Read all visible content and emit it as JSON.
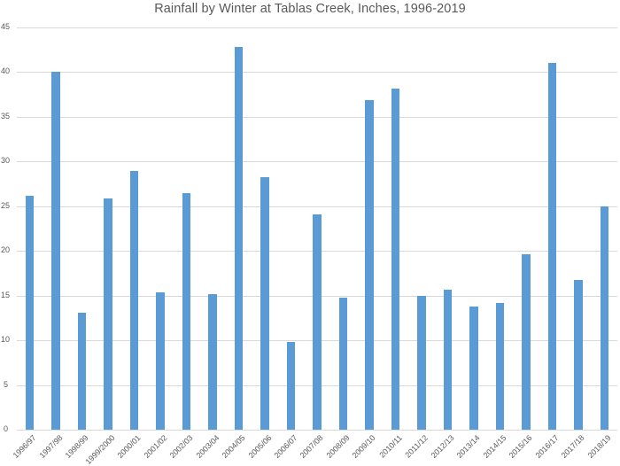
{
  "chart_data": {
    "type": "bar",
    "title": "Rainfall by Winter at Tablas Creek, Inches, 1996-2019",
    "xlabel": "",
    "ylabel": "",
    "ylim": [
      0,
      45
    ],
    "yticks": [
      0,
      5,
      10,
      15,
      20,
      25,
      30,
      35,
      40,
      45
    ],
    "grid": true,
    "legend": null,
    "bar_color": "#5b9bd5",
    "categories": [
      "1996/97",
      "1997/98",
      "1998/99",
      "1999/2000",
      "2000/01",
      "2001/02",
      "2002/03",
      "2003/04",
      "2004/05",
      "2005/06",
      "2006/07",
      "2007/08",
      "2008/09",
      "2009/10",
      "2010/11",
      "2011/12",
      "2012/13",
      "2013/14",
      "2014/15",
      "2015/16",
      "2016/17",
      "2017/18",
      "2018/19"
    ],
    "values": [
      26.2,
      40.0,
      13.1,
      25.9,
      28.9,
      15.4,
      26.5,
      15.2,
      42.8,
      28.3,
      9.8,
      24.1,
      14.8,
      36.9,
      38.2,
      15.0,
      15.7,
      13.8,
      14.2,
      19.6,
      41.0,
      16.8,
      25.0
    ]
  }
}
